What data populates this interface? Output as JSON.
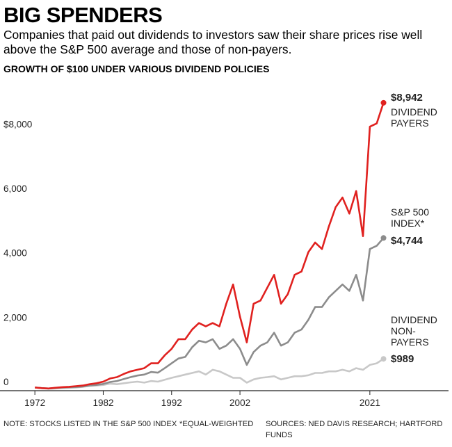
{
  "title": "BIG SPENDERS",
  "subtitle": "Companies that paid out dividends to investors saw their share prices rise well above the S&P 500 average and those of non-payers.",
  "chart_data": {
    "type": "line",
    "title": "GROWTH OF $100 UNDER VARIOUS DIVIDEND POLICIES",
    "x": [
      1972,
      1973,
      1974,
      1975,
      1976,
      1977,
      1978,
      1979,
      1980,
      1981,
      1982,
      1983,
      1984,
      1985,
      1986,
      1987,
      1988,
      1989,
      1990,
      1991,
      1992,
      1993,
      1994,
      1995,
      1996,
      1997,
      1998,
      1999,
      2000,
      2001,
      2002,
      2003,
      2004,
      2005,
      2006,
      2007,
      2008,
      2009,
      2010,
      2011,
      2012,
      2013,
      2014,
      2015,
      2016,
      2017,
      2018,
      2019,
      2020,
      2021,
      2022,
      2023
    ],
    "series": [
      {
        "name": "DIVIDEND PAYERS",
        "color": "#e0211f",
        "end_label": "$8,942",
        "values": [
          100,
          80,
          70,
          90,
          110,
          120,
          140,
          160,
          200,
          230,
          280,
          380,
          420,
          520,
          600,
          650,
          700,
          850,
          850,
          1100,
          1300,
          1600,
          1600,
          1900,
          2100,
          2000,
          2100,
          2000,
          2700,
          3300,
          2300,
          1500,
          2700,
          2800,
          3200,
          3600,
          2700,
          3000,
          3600,
          3700,
          4300,
          4600,
          4400,
          5100,
          5700,
          6000,
          5500,
          6200,
          4800,
          8200,
          8300,
          8942
        ]
      },
      {
        "name": "S&P 500 INDEX*",
        "color": "#8c8c8c",
        "end_label": "$4,744",
        "values": [
          100,
          80,
          70,
          85,
          100,
          105,
          115,
          130,
          160,
          180,
          210,
          270,
          300,
          360,
          420,
          470,
          500,
          580,
          560,
          700,
          850,
          1000,
          1050,
          1350,
          1550,
          1500,
          1600,
          1300,
          1400,
          1600,
          1300,
          800,
          1200,
          1400,
          1500,
          1800,
          1400,
          1500,
          1800,
          1900,
          2200,
          2600,
          2600,
          2900,
          3100,
          3300,
          3100,
          3600,
          2800,
          4400,
          4500,
          4744
        ]
      },
      {
        "name": "DIVIDEND NON-PAYERS",
        "color": "#c8c8c8",
        "end_label": "$989",
        "values": [
          100,
          80,
          60,
          70,
          80,
          90,
          100,
          120,
          150,
          160,
          180,
          220,
          200,
          230,
          260,
          280,
          250,
          300,
          280,
          340,
          400,
          450,
          500,
          550,
          600,
          500,
          650,
          600,
          500,
          400,
          400,
          250,
          350,
          400,
          420,
          450,
          350,
          400,
          450,
          450,
          480,
          550,
          550,
          600,
          600,
          650,
          600,
          700,
          650,
          800,
          850,
          989
        ]
      }
    ],
    "xlim": [
      1967,
      2032
    ],
    "xticks": [
      1972,
      1982,
      1992,
      2002,
      2021
    ],
    "ylim": [
      0,
      9500
    ],
    "yticks": [
      0,
      {
        "value": 2000,
        "label": "2,000"
      },
      {
        "value": 4000,
        "label": "4,000"
      },
      {
        "value": 6000,
        "label": "6,000"
      },
      {
        "value": 8000,
        "label": "$8,000"
      }
    ],
    "grid": false,
    "notes": [
      "NOTE: STOCKS LISTED IN THE S&P 500 INDEX",
      "*EQUAL-WEIGHTED",
      "SOURCES: NED DAVIS RESEARCH; HARTFORD FUNDS"
    ]
  }
}
